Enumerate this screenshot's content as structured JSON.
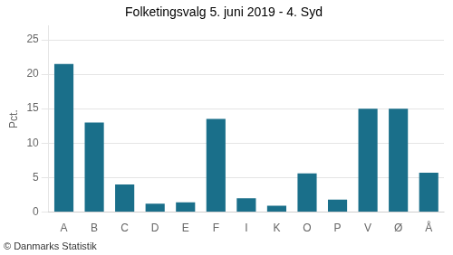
{
  "chart_data": {
    "type": "bar",
    "title": "Folketingsvalg 5. juni 2019 - 4. Syd",
    "categories": [
      "A",
      "B",
      "C",
      "D",
      "E",
      "F",
      "I",
      "K",
      "O",
      "P",
      "V",
      "Ø",
      "Å"
    ],
    "values": [
      21.5,
      13.0,
      4.0,
      1.2,
      1.4,
      13.5,
      2.0,
      0.9,
      5.6,
      1.8,
      15.0,
      15.0,
      5.7
    ],
    "color": "#1a6f8a",
    "y_label": "Pct.",
    "footer": "© Danmarks Statistik",
    "ylim": [
      0,
      27
    ],
    "yticks": [
      0,
      5,
      10,
      15,
      20,
      25
    ],
    "grid": true
  }
}
